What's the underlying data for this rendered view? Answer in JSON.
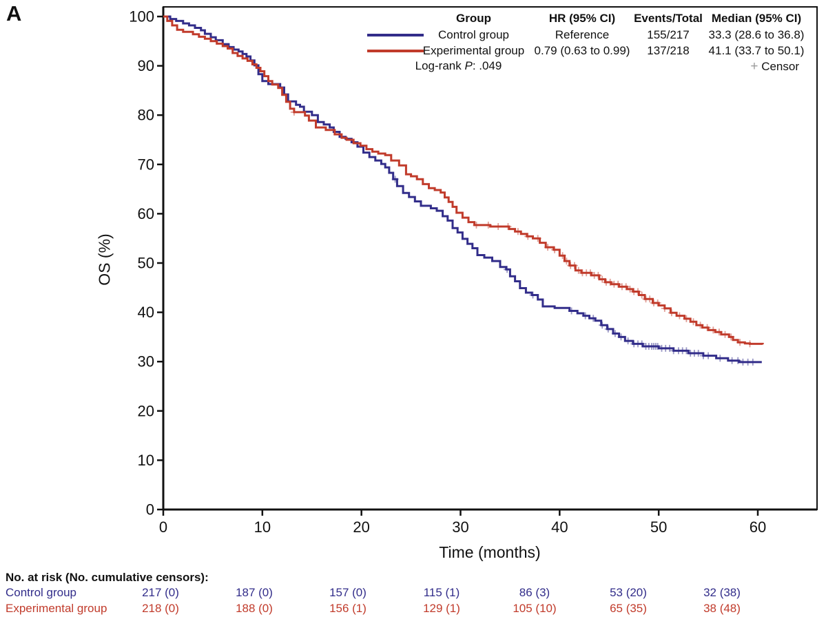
{
  "panel_label": "A",
  "legend": {
    "headers": {
      "group": "Group",
      "hr": "HR (95% CI)",
      "events": "Events/Total",
      "median": "Median (95% CI)"
    },
    "rows": [
      {
        "group": "Control group",
        "hr": "Reference",
        "events": "155/217",
        "median": "33.3 (28.6 to 36.8)"
      },
      {
        "group": "Experimental group",
        "hr": "0.79 (0.63 to 0.99)",
        "events": "137/218",
        "median": "41.1 (33.7 to 50.1)"
      }
    ],
    "logrank_prefix": "Log-rank ",
    "logrank_p": "P",
    "logrank_suffix": ": .049",
    "censor_symbol": "+",
    "censor_label": " Censor"
  },
  "chart_data": {
    "type": "line",
    "subtype": "kaplan-meier-step",
    "title": "",
    "xlabel": "Time (months)",
    "ylabel": "OS (%)",
    "xlim": [
      0,
      60
    ],
    "ylim": [
      0,
      100
    ],
    "x_ticks": [
      0,
      10,
      20,
      30,
      40,
      50,
      60
    ],
    "y_ticks": [
      0,
      10,
      20,
      30,
      40,
      50,
      60,
      70,
      80,
      90,
      100
    ],
    "grid": false,
    "legend_position": "top-right-inside",
    "series": [
      {
        "name": "Control group",
        "color": "#322d8a",
        "steps": [
          [
            0,
            100
          ],
          [
            0.7,
            99.5
          ],
          [
            1.3,
            99.1
          ],
          [
            2,
            98.6
          ],
          [
            2.6,
            98.2
          ],
          [
            3.2,
            97.7
          ],
          [
            3.8,
            97.2
          ],
          [
            4.2,
            96.5
          ],
          [
            4.8,
            95.8
          ],
          [
            5.3,
            95.2
          ],
          [
            6,
            94.4
          ],
          [
            6.6,
            93.8
          ],
          [
            7.1,
            93.3
          ],
          [
            7.6,
            92.9
          ],
          [
            8,
            92.4
          ],
          [
            8.4,
            91.9
          ],
          [
            8.8,
            91.1
          ],
          [
            9.2,
            90.1
          ],
          [
            9.6,
            88.3
          ],
          [
            10,
            86.9
          ],
          [
            10.6,
            86.3
          ],
          [
            11.8,
            85.6
          ],
          [
            12.2,
            84.2
          ],
          [
            12.6,
            82.8
          ],
          [
            13.4,
            82.1
          ],
          [
            13.8,
            81.7
          ],
          [
            14.2,
            80.7
          ],
          [
            15,
            80
          ],
          [
            15.6,
            78.6
          ],
          [
            16.2,
            78.1
          ],
          [
            16.8,
            77.5
          ],
          [
            17.2,
            76.6
          ],
          [
            17.8,
            75.6
          ],
          [
            18.4,
            75.2
          ],
          [
            19,
            74.5
          ],
          [
            19.6,
            73.6
          ],
          [
            20.2,
            72.4
          ],
          [
            20.8,
            71.5
          ],
          [
            21.4,
            70.8
          ],
          [
            22,
            70.1
          ],
          [
            22.4,
            69.4
          ],
          [
            22.8,
            68.3
          ],
          [
            23.2,
            67
          ],
          [
            23.6,
            65.6
          ],
          [
            24.2,
            64.2
          ],
          [
            24.8,
            63.4
          ],
          [
            25.4,
            62.5
          ],
          [
            26,
            61.6
          ],
          [
            27,
            61.1
          ],
          [
            27.6,
            60.6
          ],
          [
            28.2,
            59.5
          ],
          [
            28.7,
            58.6
          ],
          [
            29.2,
            57.1
          ],
          [
            29.7,
            56.2
          ],
          [
            30.2,
            54.9
          ],
          [
            30.7,
            53.9
          ],
          [
            31.2,
            53
          ],
          [
            31.7,
            51.6
          ],
          [
            32.4,
            51.1
          ],
          [
            33.2,
            50.4
          ],
          [
            34,
            49.2
          ],
          [
            34.6,
            48.7
          ],
          [
            35,
            47.3
          ],
          [
            35.5,
            46.3
          ],
          [
            36,
            44.9
          ],
          [
            36.6,
            44
          ],
          [
            37.2,
            43.5
          ],
          [
            37.8,
            42.6
          ],
          [
            38.3,
            41.2
          ],
          [
            39.5,
            40.9
          ],
          [
            41,
            40.3
          ],
          [
            41.8,
            39.8
          ],
          [
            42.4,
            39.3
          ],
          [
            43,
            38.8
          ],
          [
            43.6,
            38.3
          ],
          [
            44.2,
            37.4
          ],
          [
            44.8,
            36.6
          ],
          [
            45.4,
            35.7
          ],
          [
            46,
            35
          ],
          [
            46.6,
            34.2
          ],
          [
            47.4,
            33.6
          ],
          [
            48.4,
            33.1
          ],
          [
            50,
            32.7
          ],
          [
            51.5,
            32.2
          ],
          [
            53,
            31.7
          ],
          [
            54.5,
            31.2
          ],
          [
            55.8,
            30.7
          ],
          [
            57,
            30.2
          ],
          [
            58.1,
            29.9
          ],
          [
            60.4,
            29.9
          ]
        ],
        "censor_times": [
          23.4,
          34.7,
          37.3,
          41.2,
          42.6,
          43.4,
          44.3,
          44.9,
          45.6,
          46.2,
          46.9,
          47.5,
          47.9,
          48.3,
          48.7,
          49,
          49.3,
          49.5,
          49.7,
          49.9,
          50.3,
          50.7,
          51.1,
          51.5,
          52,
          52.4,
          52.8,
          53.2,
          53.6,
          54,
          54.5,
          55,
          56.2,
          57.4,
          58,
          58.5,
          59,
          59.5
        ]
      },
      {
        "name": "Experimental group",
        "color": "#c13b2b",
        "steps": [
          [
            0,
            100
          ],
          [
            0.4,
            99.1
          ],
          [
            0.9,
            98.2
          ],
          [
            1.4,
            97.3
          ],
          [
            2,
            96.9
          ],
          [
            3,
            96.4
          ],
          [
            3.6,
            95.9
          ],
          [
            4.2,
            95.5
          ],
          [
            4.8,
            95
          ],
          [
            5.4,
            94.5
          ],
          [
            6,
            94
          ],
          [
            6.5,
            93.5
          ],
          [
            7,
            92.6
          ],
          [
            7.5,
            92
          ],
          [
            8,
            91.5
          ],
          [
            8.5,
            91
          ],
          [
            9,
            90.3
          ],
          [
            9.4,
            89.6
          ],
          [
            9.8,
            88.9
          ],
          [
            10.2,
            87.9
          ],
          [
            10.6,
            86.9
          ],
          [
            11,
            86.2
          ],
          [
            11.6,
            85.5
          ],
          [
            12,
            84.1
          ],
          [
            12.4,
            82.7
          ],
          [
            12.8,
            81.3
          ],
          [
            13.2,
            80.6
          ],
          [
            14.3,
            79.9
          ],
          [
            14.7,
            78.9
          ],
          [
            15.4,
            77.5
          ],
          [
            16.4,
            77
          ],
          [
            17.3,
            76.1
          ],
          [
            18,
            75.4
          ],
          [
            18.5,
            75
          ],
          [
            19.2,
            74.3
          ],
          [
            19.9,
            73.8
          ],
          [
            20.5,
            73.1
          ],
          [
            21.1,
            72.6
          ],
          [
            21.7,
            72.2
          ],
          [
            22.4,
            71.9
          ],
          [
            23,
            70.8
          ],
          [
            23.8,
            69.8
          ],
          [
            24.5,
            68
          ],
          [
            25,
            67.6
          ],
          [
            25.6,
            67
          ],
          [
            26.2,
            66
          ],
          [
            26.8,
            65.2
          ],
          [
            27.4,
            64.8
          ],
          [
            28,
            64.3
          ],
          [
            28.4,
            63.3
          ],
          [
            28.8,
            62.4
          ],
          [
            29.2,
            61.4
          ],
          [
            29.6,
            60.2
          ],
          [
            30.2,
            59.2
          ],
          [
            30.8,
            58.3
          ],
          [
            31.4,
            57.7
          ],
          [
            33,
            57.4
          ],
          [
            34.9,
            56.9
          ],
          [
            35.5,
            56.4
          ],
          [
            36.1,
            55.9
          ],
          [
            36.7,
            55.4
          ],
          [
            37.3,
            55
          ],
          [
            38,
            54.1
          ],
          [
            38.6,
            53.2
          ],
          [
            39.4,
            52.7
          ],
          [
            40,
            51.5
          ],
          [
            40.5,
            50.4
          ],
          [
            41,
            49.5
          ],
          [
            41.6,
            48.5
          ],
          [
            42.2,
            48
          ],
          [
            43.2,
            47.5
          ],
          [
            44,
            46.7
          ],
          [
            44.6,
            46.1
          ],
          [
            45.2,
            45.7
          ],
          [
            46,
            45.2
          ],
          [
            46.8,
            44.7
          ],
          [
            47.4,
            44.2
          ],
          [
            48,
            43.5
          ],
          [
            48.6,
            42.7
          ],
          [
            49.4,
            41.9
          ],
          [
            50,
            41.4
          ],
          [
            50.6,
            40.8
          ],
          [
            51.2,
            39.9
          ],
          [
            51.8,
            39.3
          ],
          [
            52.6,
            38.7
          ],
          [
            53.2,
            38.1
          ],
          [
            53.8,
            37.4
          ],
          [
            54.4,
            36.9
          ],
          [
            55,
            36.4
          ],
          [
            55.7,
            36
          ],
          [
            56.3,
            35.5
          ],
          [
            57.1,
            35
          ],
          [
            57.5,
            34.4
          ],
          [
            58,
            33.9
          ],
          [
            58.7,
            33.7
          ],
          [
            59.2,
            33.6
          ],
          [
            60.5,
            33.5
          ]
        ],
        "censor_times": [
          13.2,
          31.6,
          32.8,
          33.8,
          34.8,
          35.8,
          36.8,
          37.8,
          38.8,
          39.5,
          40.3,
          40.7,
          41.1,
          41.5,
          41.9,
          42.3,
          42.7,
          43.1,
          43.5,
          43.9,
          44.3,
          44.7,
          45.1,
          45.5,
          45.9,
          46.3,
          46.7,
          47.1,
          47.5,
          47.9,
          48.3,
          48.7,
          49.1,
          49.5,
          49.9,
          50.6,
          51.3,
          52.1,
          52.8,
          53.5,
          54.2,
          54.9,
          55.5,
          56.1,
          56.7,
          57.3,
          58.2,
          59.2
        ]
      }
    ]
  },
  "risk_table": {
    "title": "No. at risk (No. cumulative censors):",
    "time_points": [
      0,
      10,
      20,
      30,
      40,
      50,
      60
    ],
    "rows": [
      {
        "label": "Control group",
        "color": "#322d8a",
        "counts": [
          "217 (0)",
          "187 (0)",
          "157 (0)",
          "115 (1)",
          "86 (3)",
          "53 (20)",
          "32 (38)"
        ]
      },
      {
        "label": "Experimental group",
        "color": "#c13b2b",
        "counts": [
          "218 (0)",
          "188 (0)",
          "156 (1)",
          "129 (1)",
          "105 (10)",
          "65 (35)",
          "38 (48)"
        ]
      }
    ]
  },
  "colors": {
    "axis": "#111111",
    "censor_legend_plus": "#9b9b9b"
  }
}
